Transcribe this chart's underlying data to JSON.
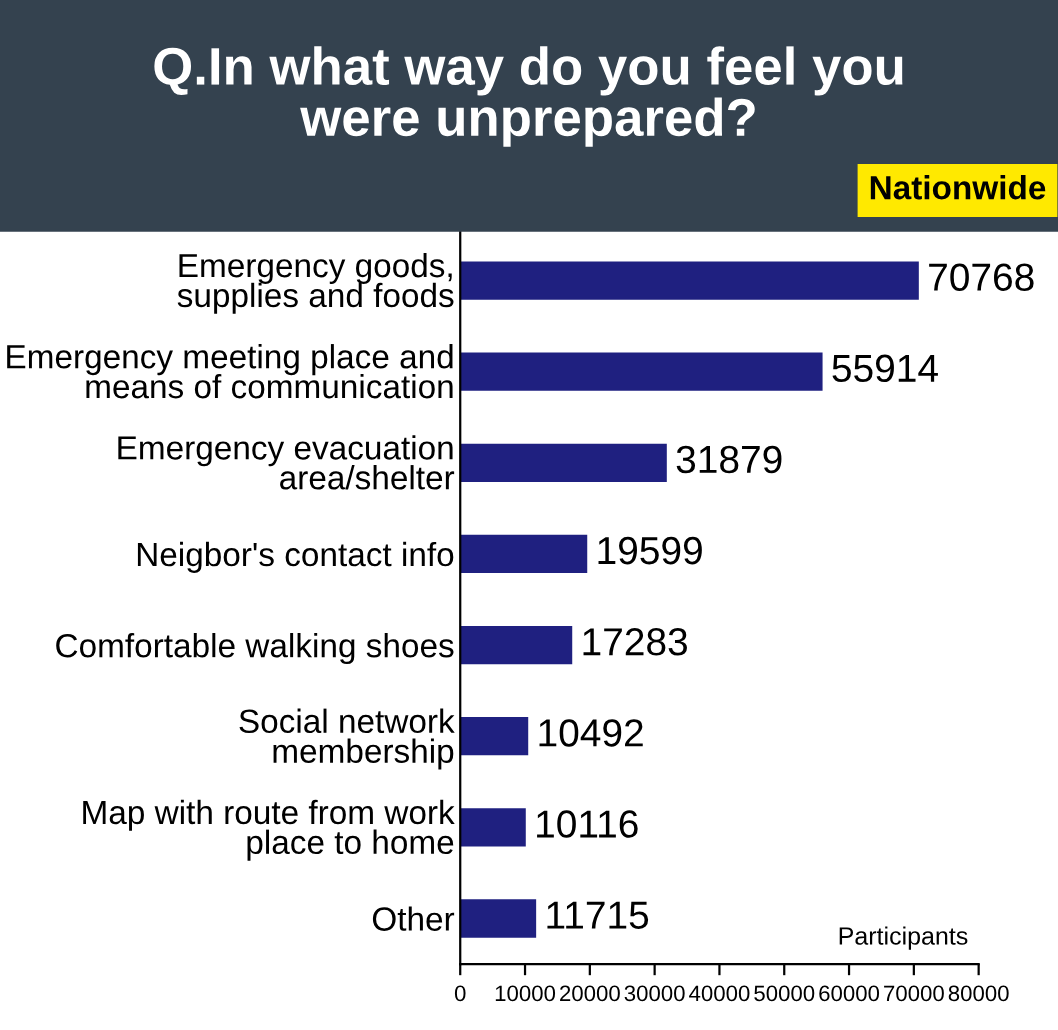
{
  "chart_data": {
    "type": "bar",
    "orientation": "horizontal",
    "title": "Q.In what way do you feel you\nwere unprepared?",
    "subtitle": "Nationwide",
    "xlabel": "Participants",
    "categories": [
      "Emergency goods,\nsupplies and foods",
      "Emergency meeting place and\nmeans of communication",
      "Emergency evacuation\narea/shelter",
      "Neigbor's contact info",
      "Comfortable walking shoes",
      "Social network\nmembership",
      "Map with route from work\nplace to home",
      "Other"
    ],
    "values": [
      70768,
      55914,
      31879,
      19599,
      17283,
      10492,
      10116,
      11715
    ],
    "color": "#1f2080",
    "xlim": [
      0,
      80000
    ],
    "xticks": [
      0,
      10000,
      20000,
      30000,
      40000,
      50000,
      60000,
      70000,
      80000
    ],
    "data_labels": true,
    "grid": false,
    "legend": false
  }
}
